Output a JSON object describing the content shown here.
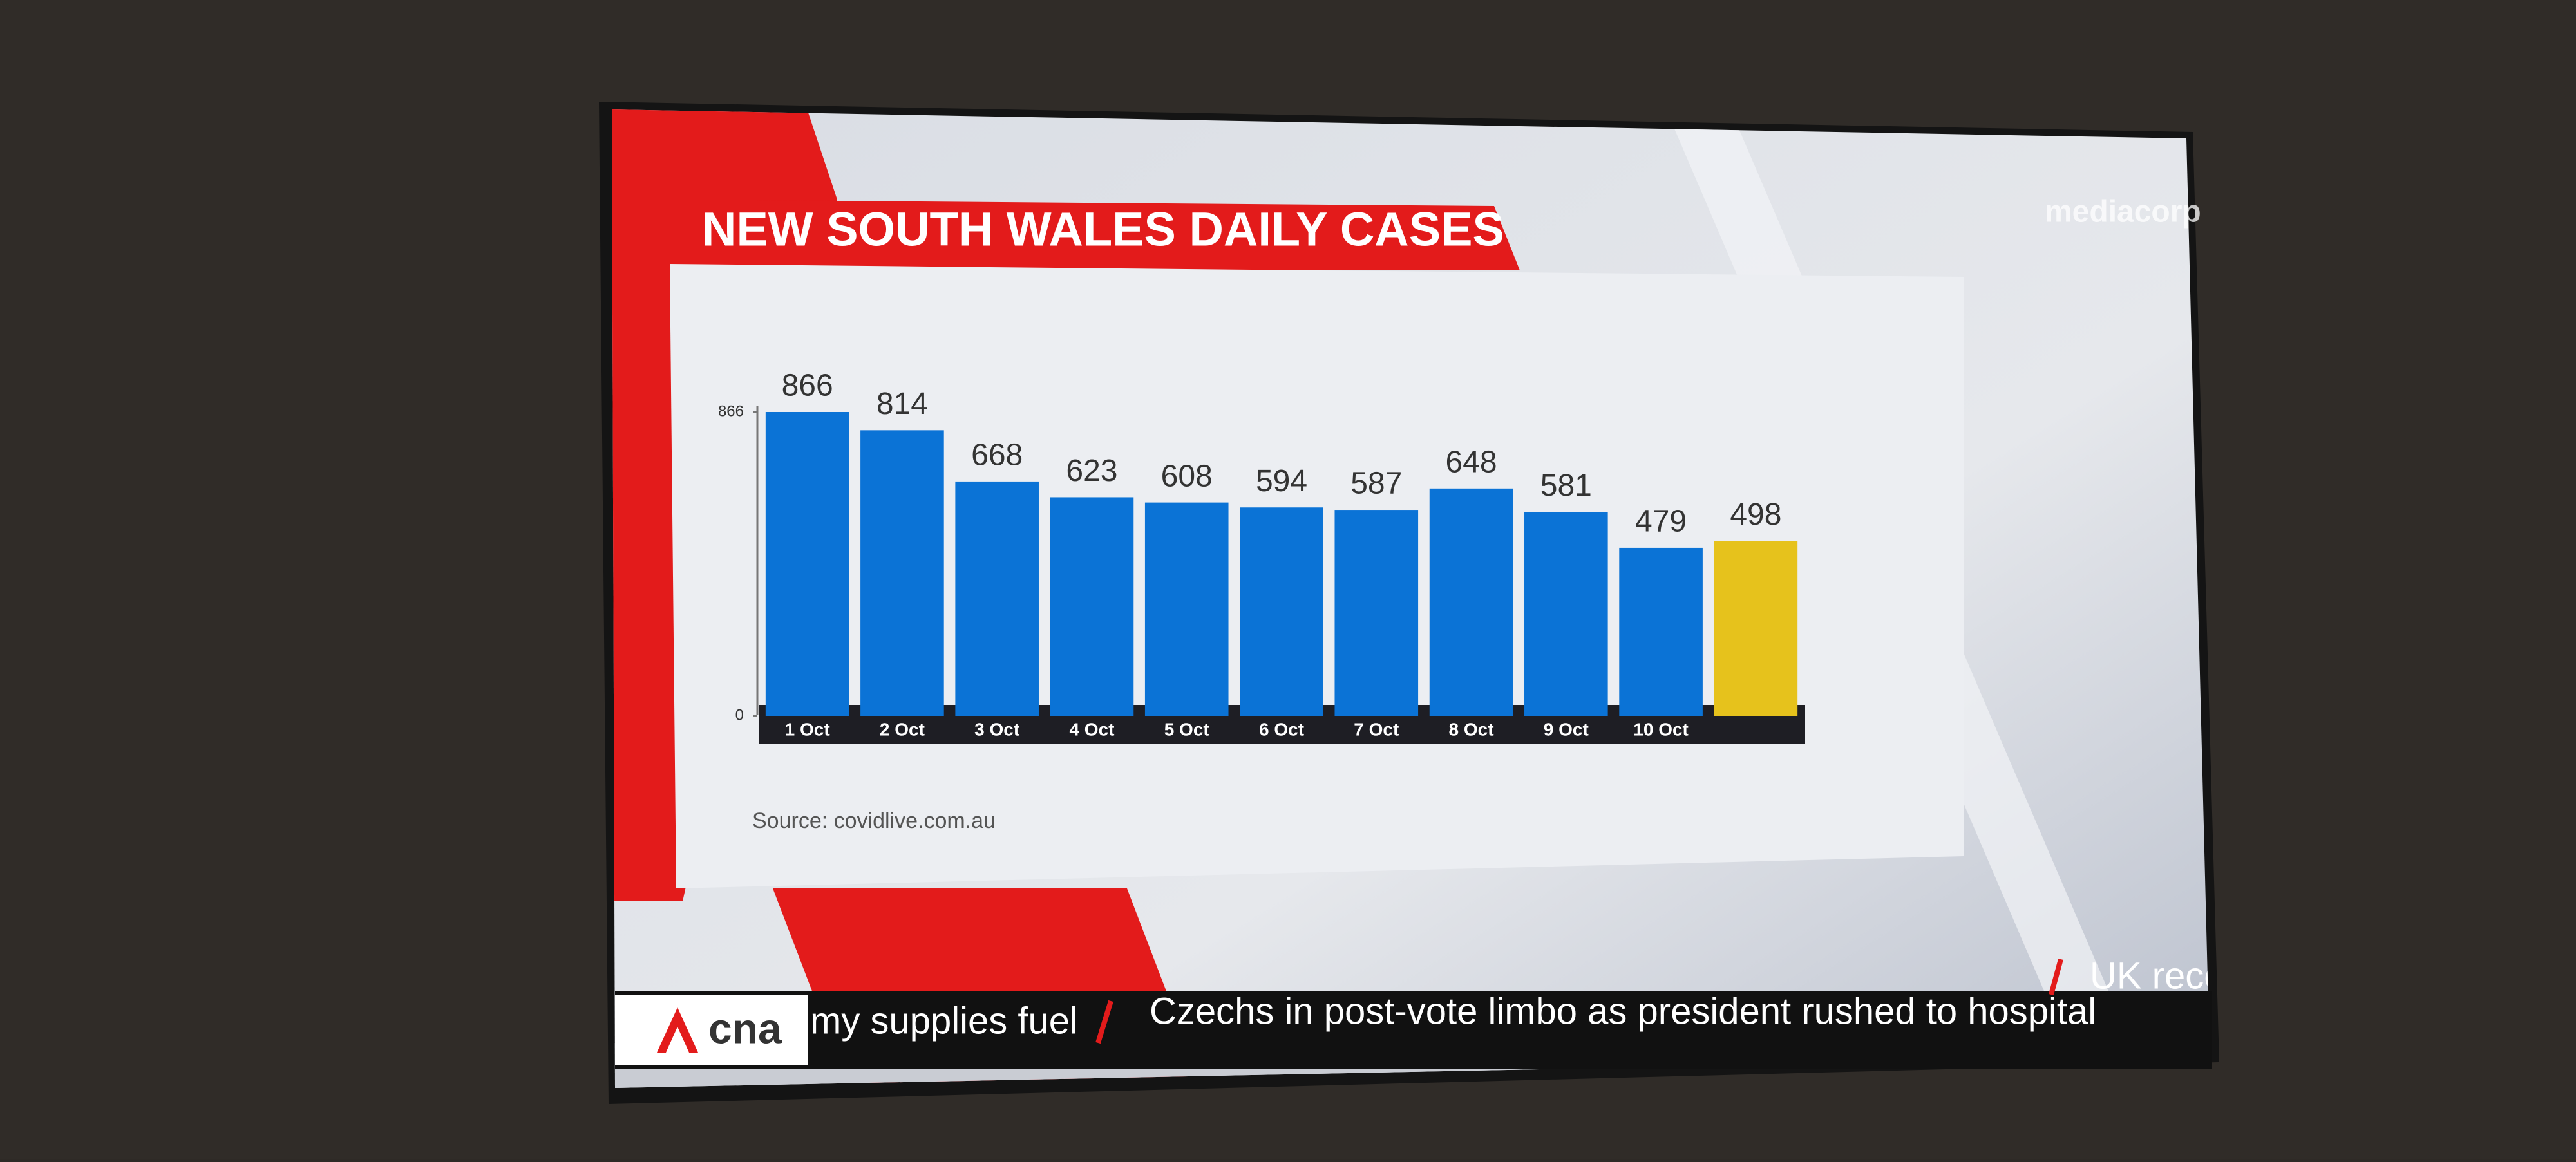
{
  "chart_data": {
    "type": "bar",
    "title": "NEW SOUTH WALES DAILY CASES",
    "categories": [
      "1 Oct",
      "2 Oct",
      "3 Oct",
      "4 Oct",
      "5 Oct",
      "6 Oct",
      "7 Oct",
      "8 Oct",
      "9 Oct",
      "10 Oct",
      null
    ],
    "values": [
      866,
      814,
      668,
      623,
      608,
      594,
      587,
      648,
      581,
      479,
      498
    ],
    "colors": [
      "#0b73d6",
      "#0b73d6",
      "#0b73d6",
      "#0b73d6",
      "#0b73d6",
      "#0b73d6",
      "#0b73d6",
      "#0b73d6",
      "#0b73d6",
      "#0b73d6",
      "#e6c21c"
    ],
    "ylim": [
      0,
      866
    ],
    "yticks": [
      0,
      866
    ],
    "grid": false,
    "source": "Source: covidlive.com.au"
  },
  "branding": {
    "watermark": "mediacorp",
    "channel_logo": "cna"
  },
  "ticker": [
    "my supplies fuel",
    "Czechs in post-vote limbo as president rushed to hospital",
    "UK recor"
  ]
}
